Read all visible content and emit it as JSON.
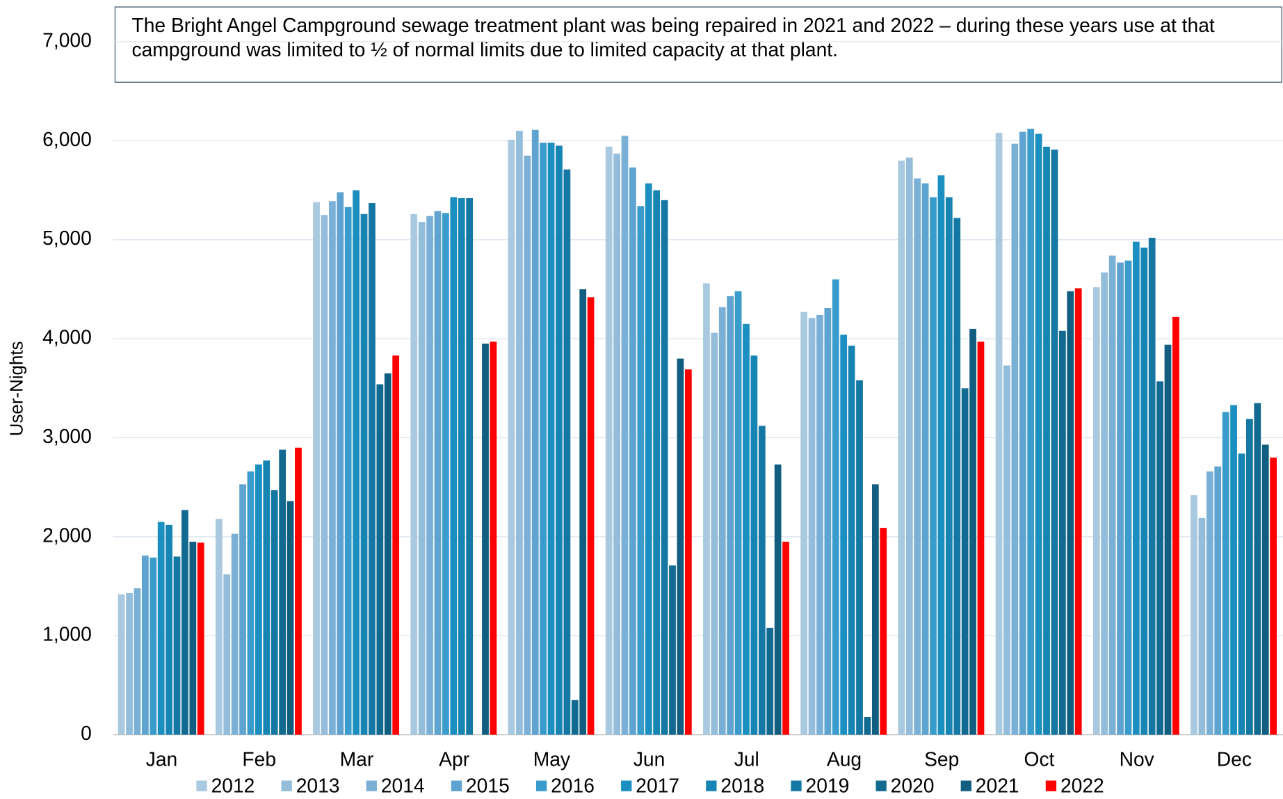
{
  "chart_data": {
    "type": "bar",
    "annotation": "The Bright Angel Campground sewage treatment plant was being repaired in 2021 and 2022 – during these years use at that campground was limited to ½ of normal limits due to limited capacity at that plant.",
    "y_label": "User-Nights",
    "categories": [
      "Jan",
      "Feb",
      "Mar",
      "Apr",
      "May",
      "Jun",
      "Jul",
      "Aug",
      "Sep",
      "Oct",
      "Nov",
      "Dec"
    ],
    "ylim": [
      0,
      7000
    ],
    "yticks": [
      0,
      {
        "value": 1000,
        "label": "1,000"
      },
      {
        "value": 2000,
        "label": "2,000"
      },
      {
        "value": 3000,
        "label": "3,000"
      },
      {
        "value": 4000,
        "label": "4,000"
      },
      {
        "value": 5000,
        "label": "5,000"
      },
      {
        "value": 6000,
        "label": "6,000"
      },
      {
        "value": 7000,
        "label": "7,000"
      }
    ],
    "grid": true,
    "legend": "bottom",
    "series": [
      {
        "name": "2012",
        "color": "#a9c9e0",
        "values": [
          1420,
          2180,
          5380,
          5260,
          6010,
          5940,
          4560,
          4270,
          5800,
          6080,
          4520,
          2420
        ]
      },
      {
        "name": "2013",
        "color": "#93bddb",
        "values": [
          1430,
          1620,
          5250,
          5180,
          6100,
          5870,
          4060,
          4210,
          5830,
          3730,
          4670,
          2190
        ]
      },
      {
        "name": "2014",
        "color": "#7bb0d6",
        "values": [
          1480,
          2030,
          5390,
          5240,
          5850,
          6050,
          4320,
          4240,
          5620,
          5970,
          4840,
          2660
        ]
      },
      {
        "name": "2015",
        "color": "#5fa3d0",
        "values": [
          1810,
          2530,
          5480,
          5290,
          6110,
          5730,
          4430,
          4310,
          5570,
          6090,
          4770,
          2710
        ]
      },
      {
        "name": "2016",
        "color": "#3a9ccc",
        "values": [
          1790,
          2660,
          5330,
          5270,
          5980,
          5340,
          4480,
          4600,
          5430,
          6120,
          4790,
          3260
        ]
      },
      {
        "name": "2017",
        "color": "#1a8fc0",
        "values": [
          2150,
          2730,
          5500,
          5430,
          5980,
          5570,
          4150,
          4040,
          5650,
          6070,
          4980,
          3330
        ]
      },
      {
        "name": "2018",
        "color": "#1785b3",
        "values": [
          2120,
          2770,
          5260,
          5420,
          5950,
          5500,
          3830,
          3930,
          5430,
          5940,
          4920,
          2840
        ]
      },
      {
        "name": "2019",
        "color": "#1577a3",
        "values": [
          1800,
          2470,
          5370,
          5420,
          5710,
          5400,
          3120,
          3580,
          5220,
          5910,
          5020,
          3190
        ]
      },
      {
        "name": "2020",
        "color": "#136a91",
        "values": [
          2270,
          2880,
          3540,
          0,
          350,
          1710,
          1080,
          180,
          3500,
          4080,
          3570,
          3350
        ]
      },
      {
        "name": "2021",
        "color": "#115e80",
        "values": [
          1950,
          2360,
          3650,
          3950,
          4500,
          3800,
          2730,
          2530,
          4100,
          4480,
          3940,
          2930
        ]
      },
      {
        "name": "2022",
        "color": "#ff0000",
        "values": [
          1940,
          2900,
          3830,
          3970,
          4420,
          3690,
          1950,
          2090,
          3970,
          4510,
          4220,
          2800
        ]
      }
    ]
  }
}
